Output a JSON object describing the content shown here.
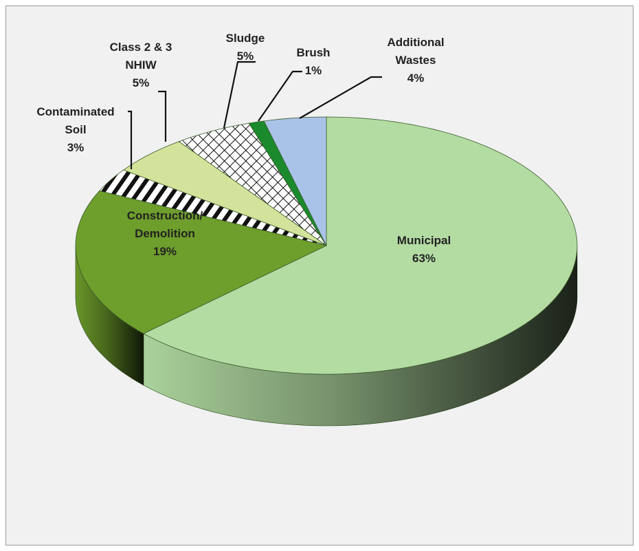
{
  "chart_data": {
    "type": "pie",
    "categories": [
      "Municipal",
      "Construction/\nDemolition",
      "Contaminated\nSoil",
      "Class 2 & 3\nNHIW",
      "Sludge",
      "Brush",
      "Additional\nWastes"
    ],
    "values": [
      63,
      19,
      3,
      5,
      5,
      1,
      4
    ],
    "value_labels": [
      "63%",
      "19%",
      "3%",
      "5%",
      "5%",
      "1%",
      "4%"
    ],
    "colors": [
      "#b3dca3",
      "#6e9e2c",
      "#ffffff",
      "#d4e39b",
      "#ffffff",
      "#1a8a2c",
      "#a9c3e8"
    ],
    "hatch": [
      null,
      null,
      "diagonal",
      null,
      "cross",
      null,
      null
    ]
  }
}
